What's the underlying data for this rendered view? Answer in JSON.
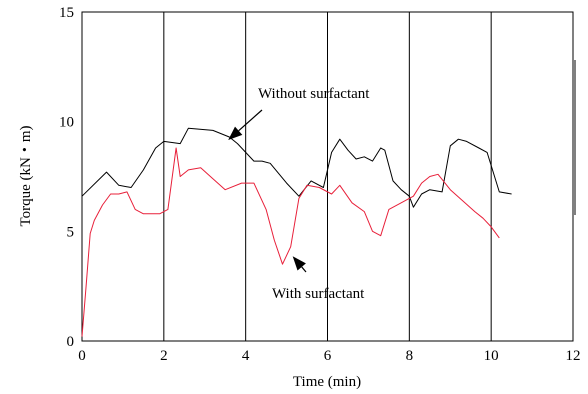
{
  "chart_data": {
    "type": "line",
    "xlabel": "Time (min)",
    "ylabel": "Torque (kN・m)",
    "xlim": [
      0,
      12
    ],
    "ylim": [
      0,
      15
    ],
    "x_ticks": [
      "0",
      "2",
      "4",
      "6",
      "8",
      "10",
      "12"
    ],
    "y_ticks": [
      "0",
      "5",
      "10",
      "15"
    ],
    "grid": "vertical",
    "colors": {
      "without": "#000000",
      "with": "#e8203a",
      "axes": "#000000"
    },
    "series": [
      {
        "name": "Without surfactant",
        "x": [
          0,
          0.6,
          0.9,
          1.2,
          1.5,
          1.8,
          2.0,
          2.4,
          2.6,
          3.2,
          3.6,
          3.8,
          4.2,
          4.4,
          4.6,
          5.0,
          5.3,
          5.6,
          5.9,
          6.1,
          6.3,
          6.5,
          6.7,
          6.9,
          7.1,
          7.3,
          7.4,
          7.6,
          7.8,
          8.0,
          8.1,
          8.3,
          8.5,
          8.8,
          9.0,
          9.2,
          9.4,
          9.7,
          9.9,
          10.2,
          10.5
        ],
        "y": [
          6.6,
          7.7,
          7.1,
          7.0,
          7.8,
          8.8,
          9.1,
          9.0,
          9.7,
          9.6,
          9.3,
          9.0,
          8.2,
          8.2,
          8.1,
          7.2,
          6.6,
          7.3,
          7.0,
          8.6,
          9.2,
          8.7,
          8.3,
          8.4,
          8.2,
          8.8,
          8.7,
          7.3,
          6.9,
          6.6,
          6.1,
          6.7,
          6.9,
          6.8,
          8.9,
          9.2,
          9.1,
          8.8,
          8.6,
          6.8,
          6.7
        ]
      },
      {
        "name": "With surfactant",
        "x": [
          0,
          0.1,
          0.2,
          0.3,
          0.5,
          0.7,
          0.9,
          1.1,
          1.3,
          1.5,
          1.7,
          1.9,
          2.1,
          2.3,
          2.4,
          2.6,
          2.9,
          3.2,
          3.5,
          3.9,
          4.2,
          4.5,
          4.7,
          4.9,
          5.1,
          5.3,
          5.5,
          5.8,
          6.1,
          6.3,
          6.6,
          6.9,
          7.1,
          7.3,
          7.5,
          7.8,
          8.1,
          8.3,
          8.5,
          8.7,
          9.0,
          9.3,
          9.6,
          9.8,
          10.0,
          10.2
        ],
        "y": [
          0.2,
          2.5,
          4.9,
          5.5,
          6.2,
          6.7,
          6.7,
          6.8,
          6.0,
          5.8,
          5.8,
          5.8,
          6.0,
          8.8,
          7.5,
          7.8,
          7.9,
          7.4,
          6.9,
          7.2,
          7.2,
          6.0,
          4.6,
          3.5,
          4.3,
          6.5,
          7.1,
          7.0,
          6.7,
          7.1,
          6.3,
          5.9,
          5.0,
          4.8,
          6.0,
          6.3,
          6.6,
          7.2,
          7.5,
          7.6,
          6.9,
          6.4,
          5.9,
          5.6,
          5.2,
          4.7
        ]
      }
    ],
    "annotations": [
      {
        "text": "Without surfactant",
        "point": [
          3.5,
          9.3
        ]
      },
      {
        "text": "With surfactant",
        "point": [
          5.1,
          4.0
        ]
      }
    ]
  }
}
